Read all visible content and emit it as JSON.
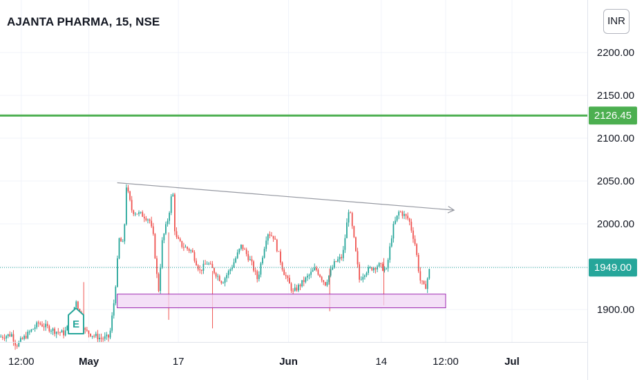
{
  "title": "AJANTA PHARMA, 15, NSE",
  "currency": "INR",
  "colors": {
    "up": "#26a69a",
    "down": "#ef5350",
    "resistance": "#4caf50",
    "last_price": "#26a69a",
    "zone_border": "#9c27b0",
    "zone_fill": "#f0d6f4",
    "trendline": "#9598a1",
    "grid": "#f0f3fa",
    "text": "#131722"
  },
  "chart_data": {
    "type": "candlestick",
    "y_axis": {
      "ticks": [
        1900,
        1950,
        2000,
        2050,
        2100,
        2150,
        2200
      ],
      "tick_labels": [
        "1900.00",
        "1950.00",
        "2000.00",
        "2050.00",
        "2100.00",
        "2150.00",
        "2200.00"
      ],
      "range": [
        1862,
        2252
      ]
    },
    "x_axis": {
      "labels": [
        "12:00",
        "May",
        "17",
        "Jun",
        "14",
        "12:00",
        "Jul"
      ],
      "bold_labels": [
        "May",
        "Jun",
        "Jul"
      ]
    },
    "resistance_line": {
      "value": 2126.45,
      "label": "2126.45"
    },
    "last_price": {
      "value": 1949.0,
      "label": "1949.00"
    },
    "support_zone": {
      "low": 1902,
      "high": 1918
    },
    "trendline": {
      "start_price": 2048,
      "end_price": 2016,
      "arrow": true
    },
    "earnings_marker": {
      "label": "E"
    },
    "path": [
      [
        0,
        1868
      ],
      [
        0.018,
        1871
      ],
      [
        0.025,
        1858
      ],
      [
        0.06,
        1884
      ],
      [
        0.085,
        1875
      ],
      [
        0.1,
        1872
      ],
      [
        0.112,
        1890
      ],
      [
        0.118,
        1912
      ],
      [
        0.124,
        1895
      ],
      [
        0.132,
        1875
      ],
      [
        0.145,
        1870
      ],
      [
        0.158,
        1866
      ],
      [
        0.17,
        1868
      ],
      [
        0.178,
        1915
      ],
      [
        0.185,
        1982
      ],
      [
        0.192,
        1975
      ],
      [
        0.196,
        2045
      ],
      [
        0.205,
        2015
      ],
      [
        0.222,
        2010
      ],
      [
        0.232,
        2005
      ],
      [
        0.238,
        1985
      ],
      [
        0.246,
        1920
      ],
      [
        0.252,
        1980
      ],
      [
        0.262,
        2010
      ],
      [
        0.268,
        2042
      ],
      [
        0.272,
        1985
      ],
      [
        0.282,
        1975
      ],
      [
        0.298,
        1968
      ],
      [
        0.31,
        1945
      ],
      [
        0.322,
        1955
      ],
      [
        0.345,
        1932
      ],
      [
        0.36,
        1950
      ],
      [
        0.375,
        1975
      ],
      [
        0.39,
        1955
      ],
      [
        0.4,
        1935
      ],
      [
        0.415,
        1990
      ],
      [
        0.425,
        1985
      ],
      [
        0.44,
        1945
      ],
      [
        0.455,
        1920
      ],
      [
        0.47,
        1932
      ],
      [
        0.49,
        1948
      ],
      [
        0.505,
        1930
      ],
      [
        0.52,
        1955
      ],
      [
        0.532,
        1962
      ],
      [
        0.542,
        2020
      ],
      [
        0.55,
        1980
      ],
      [
        0.558,
        1935
      ],
      [
        0.568,
        1945
      ],
      [
        0.588,
        1952
      ],
      [
        0.6,
        1945
      ],
      [
        0.61,
        1995
      ],
      [
        0.62,
        2015
      ],
      [
        0.635,
        2005
      ],
      [
        0.645,
        1975
      ],
      [
        0.652,
        1935
      ],
      [
        0.66,
        1924
      ],
      [
        0.668,
        1950
      ]
    ],
    "earnings_pos": 0.118,
    "trend_pos": [
      0.182,
      0.705
    ],
    "zone_pos": [
      0.182,
      0.692
    ],
    "x_label_pos": [
      0.033,
      0.138,
      0.277,
      0.448,
      0.592,
      0.692,
      0.795
    ]
  }
}
